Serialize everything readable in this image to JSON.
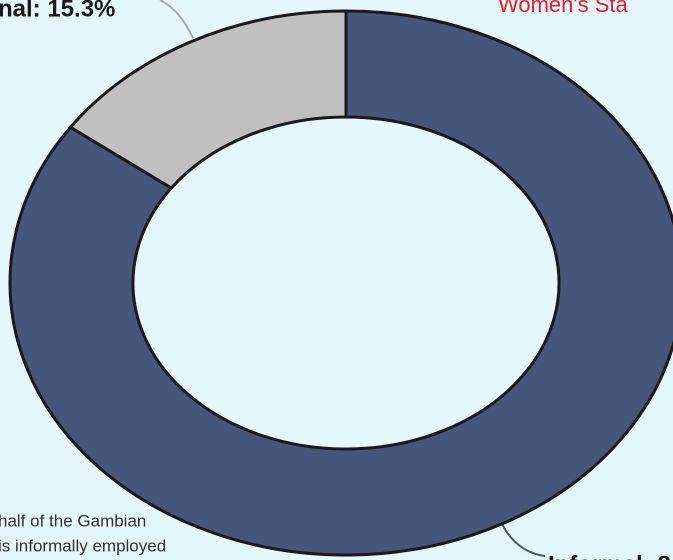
{
  "chart_data": {
    "type": "pie",
    "donut": true,
    "title": "Women's Sta",
    "annotation": [
      "half of the Gambian",
      "is informally employed"
    ],
    "values": [
      84.7,
      15.3
    ],
    "value_labels": [
      "Informal: 8",
      "nal: 15.3%"
    ],
    "colors": [
      "#46557a",
      "#c0c0c0"
    ]
  }
}
